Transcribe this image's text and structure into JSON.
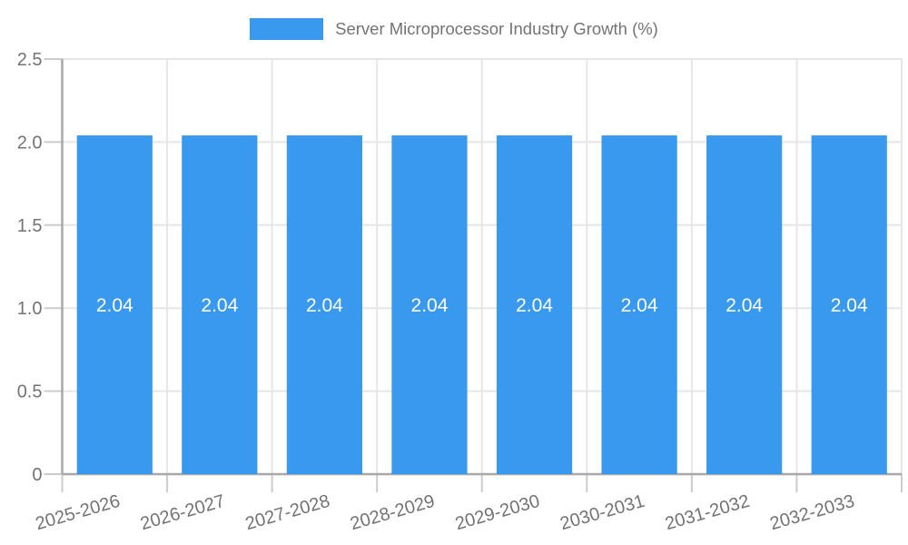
{
  "chart_data": {
    "type": "bar",
    "title": "Server Microprocessor Industry Growth (%)",
    "legend": {
      "label": "Server Microprocessor Industry Growth (%)",
      "position": "top"
    },
    "categories": [
      "2025-2026",
      "2026-2027",
      "2027-2028",
      "2028-2029",
      "2029-2030",
      "2030-2031",
      "2031-2032",
      "2032-2033"
    ],
    "series": [
      {
        "name": "Server Microprocessor Industry Growth (%)",
        "values": [
          2.04,
          2.04,
          2.04,
          2.04,
          2.04,
          2.04,
          2.04,
          2.04
        ],
        "bar_labels": [
          "2.04",
          "2.04",
          "2.04",
          "2.04",
          "2.04",
          "2.04",
          "2.04",
          "2.04"
        ]
      }
    ],
    "xlabel": "",
    "ylabel": "",
    "ylim": [
      0,
      2.5
    ],
    "ytick_values": [
      0,
      0.5,
      1,
      1.5,
      2,
      2.5
    ],
    "ytick_labels": [
      "0",
      "0.5",
      "1.0",
      "1.5",
      "2.0",
      "2.5"
    ],
    "x_label_rotation_deg": -16,
    "grid": true,
    "colors": {
      "bar": "#3899ee",
      "value_label": "#ffffff",
      "tick_text": "#737373",
      "legend_text": "#737373",
      "gridline": "#e6e6e6",
      "axis_line": "#a8a8a8",
      "tick_mark": "#cccccc",
      "background": "#ffffff"
    }
  }
}
